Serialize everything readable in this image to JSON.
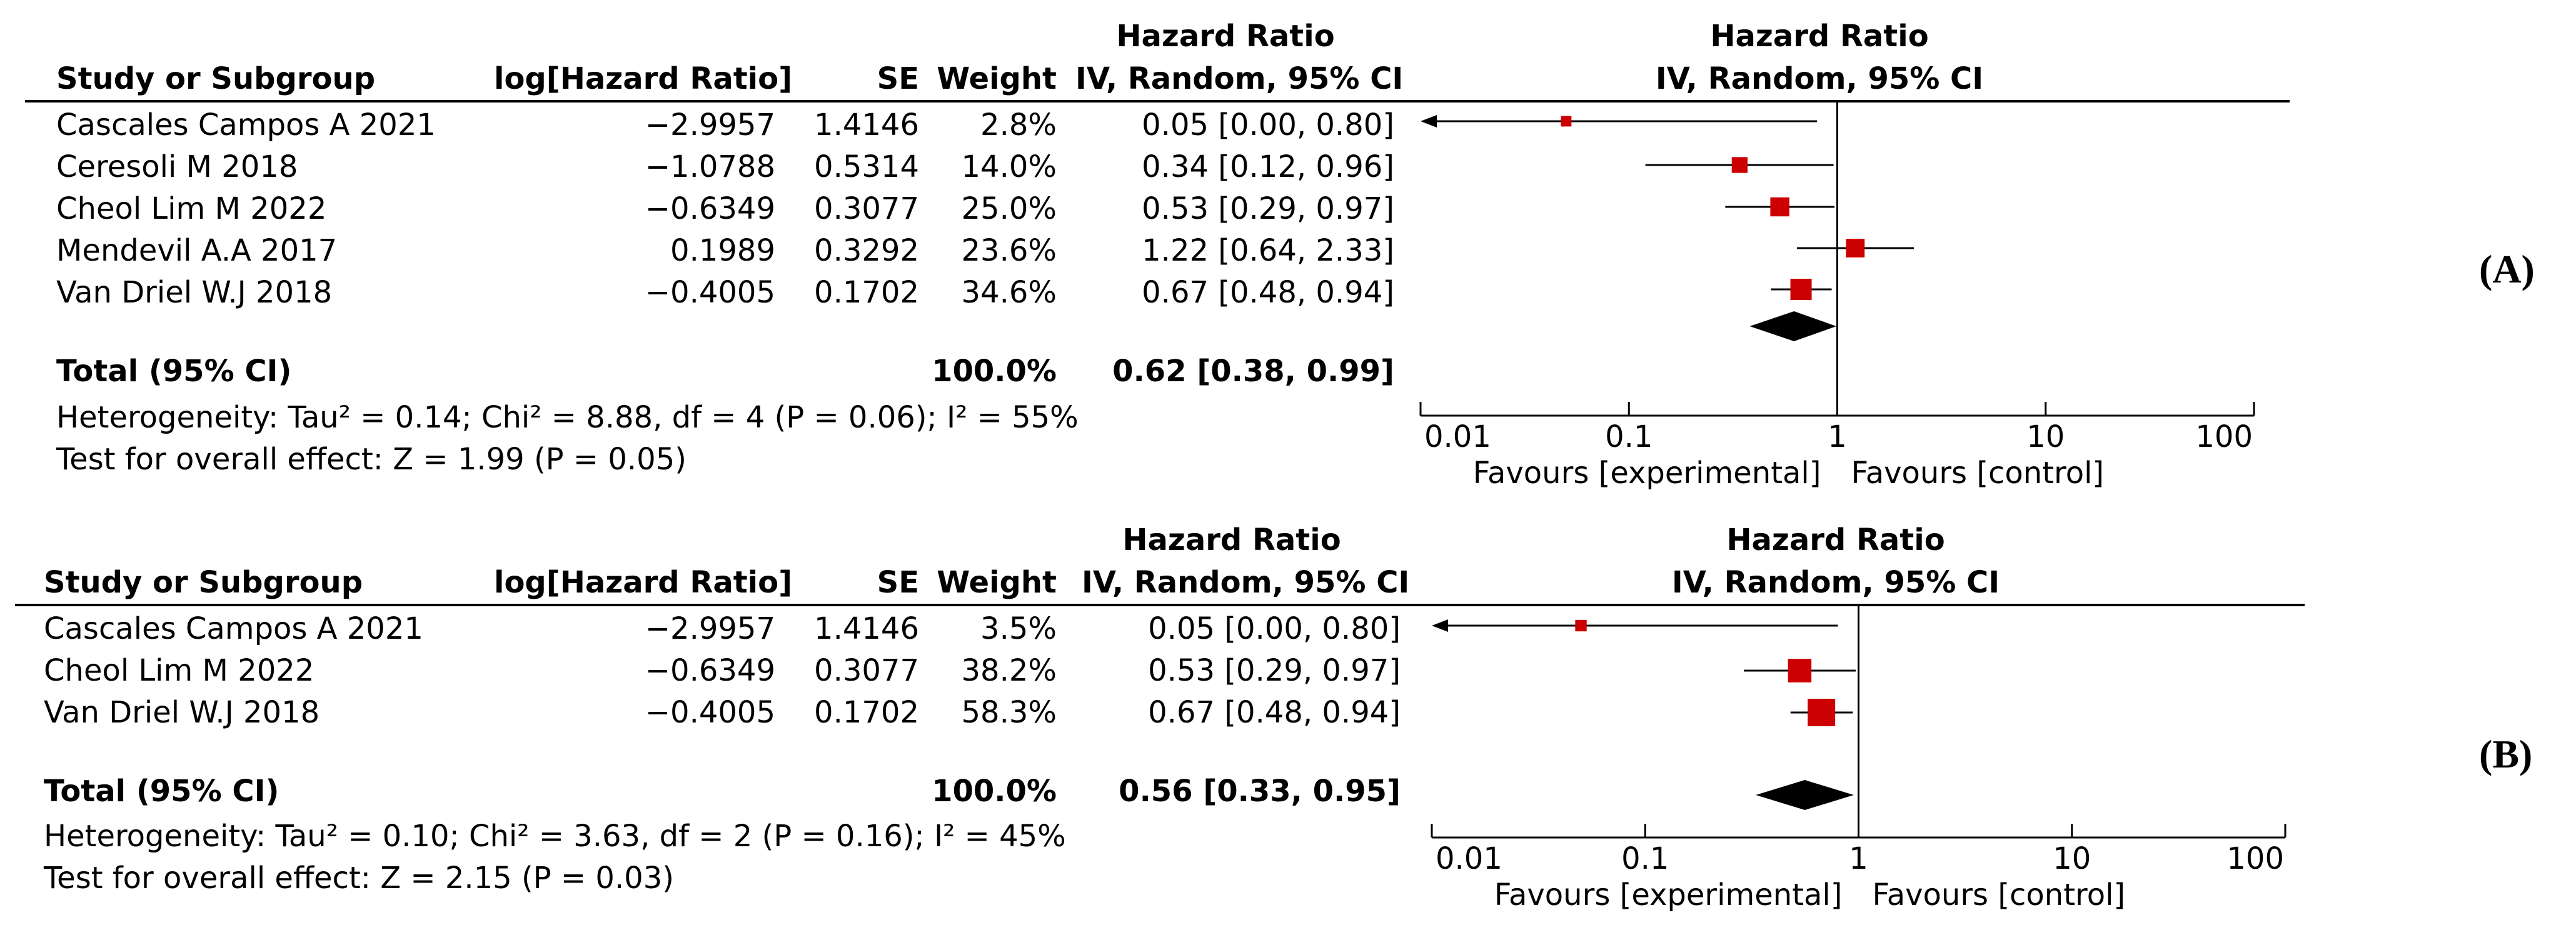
{
  "columns": {
    "study": "Study or Subgroup",
    "loghr": "log[Hazard Ratio]",
    "se": "SE",
    "weight": "Weight",
    "hr_title": "Hazard Ratio",
    "hr_sub": "IV, Random, 95% CI",
    "plot_title": "Hazard Ratio",
    "plot_sub": "IV, Random, 95% CI"
  },
  "panels": [
    {
      "label": "(A)",
      "rows": [
        {
          "study": "Cascales Campos A 2021",
          "loghr": "−2.9957",
          "se": "1.4146",
          "weight": "2.8%",
          "ci_text": "0.05 [0.00, 0.80]"
        },
        {
          "study": "Ceresoli M 2018",
          "loghr": "−1.0788",
          "se": "0.5314",
          "weight": "14.0%",
          "ci_text": "0.34 [0.12, 0.96]"
        },
        {
          "study": "Cheol Lim M 2022",
          "loghr": "−0.6349",
          "se": "0.3077",
          "weight": "25.0%",
          "ci_text": "0.53 [0.29, 0.97]"
        },
        {
          "study": "Mendevil A.A 2017",
          "loghr": "0.1989",
          "se": "0.3292",
          "weight": "23.6%",
          "ci_text": "1.22 [0.64, 2.33]"
        },
        {
          "study": "Van Driel W.J 2018",
          "loghr": "−0.4005",
          "se": "0.1702",
          "weight": "34.6%",
          "ci_text": "0.67 [0.48, 0.94]"
        }
      ],
      "total": {
        "label": "Total (95% CI)",
        "weight": "100.0%",
        "ci_text": "0.62 [0.38, 0.99]"
      },
      "heterogeneity": "Heterogeneity: Tau² = 0.14; Chi² = 8.88, df = 4 (P = 0.06); I² = 55%",
      "overall": "Test for overall effect: Z = 1.99 (P = 0.05)",
      "favours_left": "Favours [experimental]",
      "favours_right": "Favours [control]"
    },
    {
      "label": "(B)",
      "rows": [
        {
          "study": "Cascales Campos A 2021",
          "loghr": "−2.9957",
          "se": "1.4146",
          "weight": "3.5%",
          "ci_text": "0.05 [0.00, 0.80]"
        },
        {
          "study": "Cheol Lim M 2022",
          "loghr": "−0.6349",
          "se": "0.3077",
          "weight": "38.2%",
          "ci_text": "0.53 [0.29, 0.97]"
        },
        {
          "study": "Van Driel W.J 2018",
          "loghr": "−0.4005",
          "se": "0.1702",
          "weight": "58.3%",
          "ci_text": "0.67 [0.48, 0.94]"
        }
      ],
      "total": {
        "label": "Total (95% CI)",
        "weight": "100.0%",
        "ci_text": "0.56 [0.33, 0.95]"
      },
      "heterogeneity": "Heterogeneity: Tau² = 0.10; Chi² = 3.63, df = 2 (P = 0.16); I² = 45%",
      "overall": "Test for overall effect: Z = 2.15 (P = 0.03)",
      "favours_left": "Favours [experimental]",
      "favours_right": "Favours [control]"
    }
  ],
  "chart_data": [
    {
      "type": "forest",
      "scale": "log",
      "xlim": [
        0.01,
        100
      ],
      "ticks": [
        "0.01",
        "0.1",
        "1",
        "10",
        "100"
      ],
      "tick_values": [
        0.01,
        0.1,
        1,
        10,
        100
      ],
      "null_line": 1,
      "studies": [
        {
          "name": "Cascales Campos A 2021",
          "hr": 0.05,
          "lo": 0.0,
          "hi": 0.8,
          "weight": 2.8
        },
        {
          "name": "Ceresoli M 2018",
          "hr": 0.34,
          "lo": 0.12,
          "hi": 0.96,
          "weight": 14.0
        },
        {
          "name": "Cheol Lim M 2022",
          "hr": 0.53,
          "lo": 0.29,
          "hi": 0.97,
          "weight": 25.0
        },
        {
          "name": "Mendevil A.A 2017",
          "hr": 1.22,
          "lo": 0.64,
          "hi": 2.33,
          "weight": 23.6
        },
        {
          "name": "Van Driel W.J 2018",
          "hr": 0.67,
          "lo": 0.48,
          "hi": 0.94,
          "weight": 34.6
        }
      ],
      "pooled": {
        "hr": 0.62,
        "lo": 0.38,
        "hi": 0.99
      },
      "marker_color": "#cc0000"
    },
    {
      "type": "forest",
      "scale": "log",
      "xlim": [
        0.01,
        100
      ],
      "ticks": [
        "0.01",
        "0.1",
        "1",
        "10",
        "100"
      ],
      "tick_values": [
        0.01,
        0.1,
        1,
        10,
        100
      ],
      "null_line": 1,
      "studies": [
        {
          "name": "Cascales Campos A 2021",
          "hr": 0.05,
          "lo": 0.0,
          "hi": 0.8,
          "weight": 3.5
        },
        {
          "name": "Cheol Lim M 2022",
          "hr": 0.53,
          "lo": 0.29,
          "hi": 0.97,
          "weight": 38.2
        },
        {
          "name": "Van Driel W.J 2018",
          "hr": 0.67,
          "lo": 0.48,
          "hi": 0.94,
          "weight": 58.3
        }
      ],
      "pooled": {
        "hr": 0.56,
        "lo": 0.33,
        "hi": 0.95
      },
      "marker_color": "#cc0000"
    }
  ]
}
